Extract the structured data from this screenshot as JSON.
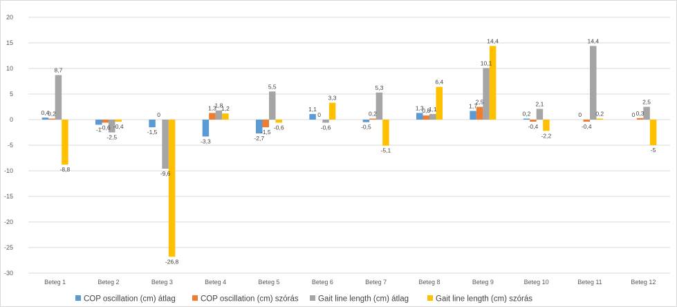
{
  "chart_data": {
    "type": "bar",
    "title": "",
    "xlabel": "",
    "ylabel": "",
    "ylim": [
      -30,
      20
    ],
    "yticks": [
      20,
      15,
      10,
      5,
      0,
      -5,
      -10,
      -15,
      -20,
      -25,
      -30
    ],
    "ytick_labels": [
      "20",
      "15",
      "10",
      "5",
      "0",
      "-5",
      "-10",
      "-15",
      "-20",
      "-25",
      "-30"
    ],
    "grid": true,
    "legend_position": "bottom",
    "categories": [
      "Beteg 1",
      "Beteg 2",
      "Beteg 3",
      "Beteg 4",
      "Beteg 5",
      "Beteg 6",
      "Beteg 7",
      "Beteg 8",
      "Beteg 9",
      "Beteg 10",
      "Beteg 11",
      "Beteg 12"
    ],
    "series": [
      {
        "name": "COP oscillation (cm) átlag",
        "color": "#5B9BD5",
        "values": [
          0.4,
          -1,
          -1.5,
          -3.3,
          -2.7,
          1.1,
          -0.5,
          1.3,
          1.7,
          0.2,
          0,
          0
        ],
        "labels": [
          "0,4",
          "-1",
          "-1,5",
          "-3,3",
          "-2,7",
          "1,1",
          "-0,5",
          "1,3",
          "1,7",
          "0,2",
          "0",
          "0"
        ]
      },
      {
        "name": "COP oscillation (cm) szórás",
        "color": "#ED7D31",
        "values": [
          0.2,
          -0.6,
          0,
          1.3,
          -1.5,
          0,
          0.2,
          0.8,
          2.5,
          -0.4,
          -0.4,
          0.3
        ],
        "labels": [
          "0,2",
          "-0,6",
          "0",
          "1,3",
          "-1,5",
          "0",
          "0,2",
          "0,8",
          "2,5",
          "-0,4",
          "-0,4",
          "0,3"
        ]
      },
      {
        "name": "Gait line length (cm) átlag",
        "color": "#A5A5A5",
        "values": [
          8.7,
          -2.5,
          -9.6,
          1.8,
          5.5,
          -0.6,
          5.3,
          1.1,
          10.1,
          2.1,
          14.4,
          2.5
        ],
        "labels": [
          "8,7",
          "-2,5",
          "-9,6",
          "1,8",
          "5,5",
          "-0,6",
          "5,3",
          "1,1",
          "10,1",
          "2,1",
          "14,4",
          "2,5"
        ]
      },
      {
        "name": "Gait line length (cm) szórás",
        "color": "#FFC000",
        "values": [
          -8.8,
          -0.4,
          -26.8,
          1.2,
          -0.6,
          3.3,
          -5.1,
          6.4,
          14.4,
          -2.2,
          0.2,
          -5
        ],
        "labels": [
          "-8,8",
          "-0,4",
          "-26,8",
          "1,2",
          "-0,6",
          "3,3",
          "-5,1",
          "6,4",
          "14,4",
          "-2,2",
          "0,2",
          "-5"
        ]
      }
    ]
  }
}
